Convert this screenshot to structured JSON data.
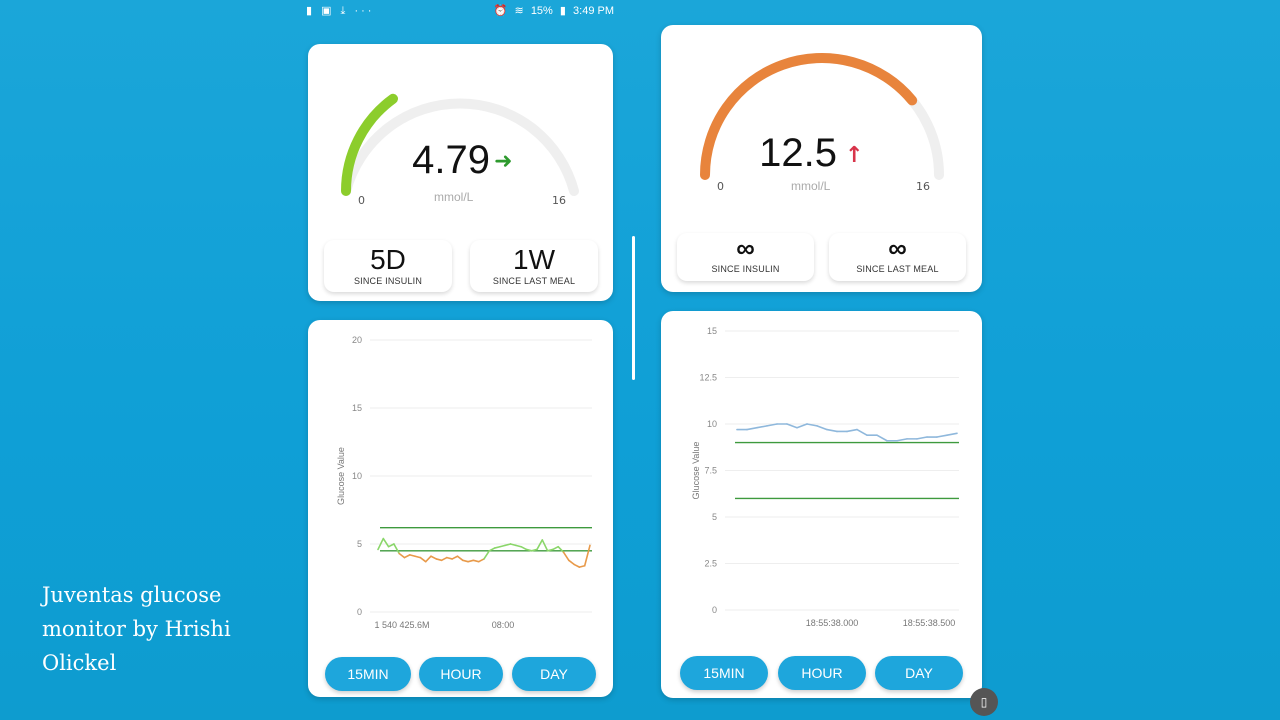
{
  "status_bar": {
    "left_icons": [
      "notification-icon",
      "image-icon",
      "download-icon",
      "more-icon"
    ],
    "battery": "15%",
    "time": "3:49 PM"
  },
  "caption": "Juventas glucose monitor by Hrishi Olickel",
  "left_panel": {
    "gauge": {
      "value": "4.79",
      "unit": "mmol/L",
      "min_label": "0",
      "max_label": "16",
      "fill_fraction": 0.3,
      "color": "#8ccd2c",
      "trend": "right-arrow",
      "trend_color": "#2e9a2e"
    },
    "stats": [
      {
        "value": "5D",
        "label": "SINCE INSULIN"
      },
      {
        "value": "1W",
        "label": "SINCE LAST MEAL"
      }
    ],
    "chart_data": {
      "type": "line",
      "ylabel": "Glucose Value",
      "ylim": [
        0,
        20
      ],
      "yticks": [
        "0",
        "5",
        "10",
        "15",
        "20"
      ],
      "xticks": [
        "1 540 425.6M",
        "08:00"
      ],
      "thresholds": [
        4.5,
        6.2
      ],
      "series": [
        {
          "values": [
            4.6,
            5.4,
            4.8,
            5.0,
            4.3,
            4.0,
            4.2,
            4.1,
            4.0,
            3.7,
            4.1,
            3.9,
            3.8,
            4.0,
            3.9,
            4.1,
            3.8,
            3.7,
            3.8,
            3.7,
            3.9,
            4.5,
            4.7,
            4.8,
            4.9,
            5.0,
            4.9,
            4.8,
            4.6,
            4.5,
            4.6,
            5.3,
            4.5,
            4.6,
            4.8,
            4.4,
            3.8,
            3.5,
            3.3,
            3.4,
            4.9
          ]
        }
      ],
      "series_colors": {
        "in_range": "#8ad66a",
        "low": "#e89a4a",
        "threshold": "#3e9a3e"
      }
    },
    "buttons": [
      "15MIN",
      "HOUR",
      "DAY"
    ]
  },
  "right_panel": {
    "gauge": {
      "value": "12.5",
      "unit": "mmol/L",
      "min_label": "0",
      "max_label": "16",
      "fill_fraction": 0.78,
      "color": "#e8843c",
      "trend": "up-arrow",
      "trend_color": "#d8344a"
    },
    "stats": [
      {
        "value": "∞",
        "label": "SINCE INSULIN"
      },
      {
        "value": "∞",
        "label": "SINCE LAST MEAL"
      }
    ],
    "chart_data": {
      "type": "line",
      "ylabel": "Glucose Value",
      "ylim": [
        0,
        15
      ],
      "yticks": [
        "0",
        "2.5",
        "5",
        "7.5",
        "10",
        "12.5",
        "15"
      ],
      "xticks": [
        "18:55:38.000",
        "18:55:38.500"
      ],
      "thresholds": [
        6.0,
        9.0
      ],
      "series": [
        {
          "values": [
            9.7,
            9.7,
            9.8,
            9.9,
            10.0,
            10.0,
            9.8,
            10.0,
            9.9,
            9.7,
            9.6,
            9.6,
            9.7,
            9.4,
            9.4,
            9.1,
            9.1,
            9.2,
            9.2,
            9.3,
            9.3,
            9.4,
            9.5
          ]
        }
      ],
      "series_colors": {
        "line": "#8fb8dc",
        "threshold": "#3e9a3e"
      }
    },
    "buttons": [
      "15MIN",
      "HOUR",
      "DAY"
    ]
  }
}
